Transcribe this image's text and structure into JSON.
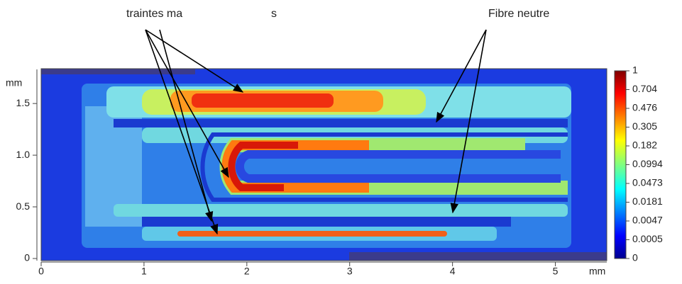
{
  "chart_data": {
    "type": "heatmap",
    "annotations": [
      "traintes ma",
      "s",
      "Fibre neutre"
    ],
    "xlabel": "mm",
    "ylabel": "mm",
    "xlim": [
      0,
      5.5
    ],
    "xticks": [
      0,
      1,
      2,
      3,
      4,
      5
    ],
    "ylim": [
      0,
      1.83
    ],
    "yticks": [
      0,
      0.5,
      {
        "value": 1,
        "label": "1.0"
      },
      1.5
    ],
    "colorbar_ticks": [
      1,
      0.704,
      0.476,
      0.305,
      0.182,
      0.0994,
      0.0473,
      0.0181,
      0.0047,
      0.0005,
      0
    ]
  }
}
